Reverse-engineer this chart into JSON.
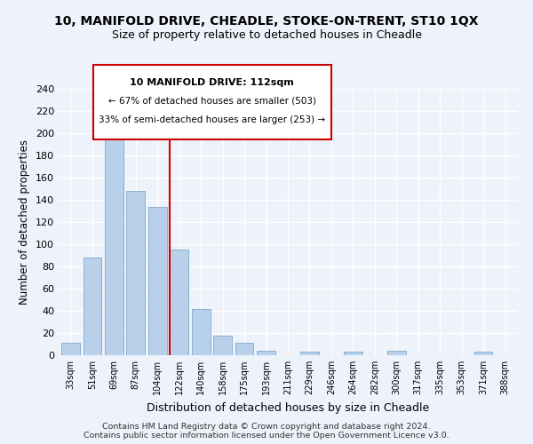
{
  "title": "10, MANIFOLD DRIVE, CHEADLE, STOKE-ON-TRENT, ST10 1QX",
  "subtitle": "Size of property relative to detached houses in Cheadle",
  "xlabel": "Distribution of detached houses by size in Cheadle",
  "ylabel": "Number of detached properties",
  "bar_labels": [
    "33sqm",
    "51sqm",
    "69sqm",
    "87sqm",
    "104sqm",
    "122sqm",
    "140sqm",
    "158sqm",
    "175sqm",
    "193sqm",
    "211sqm",
    "229sqm",
    "246sqm",
    "264sqm",
    "282sqm",
    "300sqm",
    "317sqm",
    "335sqm",
    "353sqm",
    "371sqm",
    "388sqm"
  ],
  "bar_values": [
    11,
    88,
    195,
    148,
    134,
    95,
    42,
    18,
    11,
    4,
    0,
    3,
    0,
    3,
    0,
    4,
    0,
    0,
    0,
    3,
    0
  ],
  "bar_color": "#b8d0ea",
  "bar_edge_color": "#8ab0d0",
  "vline_color": "#cc0000",
  "vline_x": 4.57,
  "annotation_title": "10 MANIFOLD DRIVE: 112sqm",
  "annotation_left": "← 67% of detached houses are smaller (503)",
  "annotation_right": "33% of semi-detached houses are larger (253) →",
  "annotation_box_color": "#ffffff",
  "annotation_box_edge": "#cc0000",
  "ylim": [
    0,
    240
  ],
  "yticks": [
    0,
    20,
    40,
    60,
    80,
    100,
    120,
    140,
    160,
    180,
    200,
    220,
    240
  ],
  "footer1": "Contains HM Land Registry data © Crown copyright and database right 2024.",
  "footer2": "Contains public sector information licensed under the Open Government Licence v3.0.",
  "bg_color": "#eef2fa",
  "grid_color": "#ffffff"
}
